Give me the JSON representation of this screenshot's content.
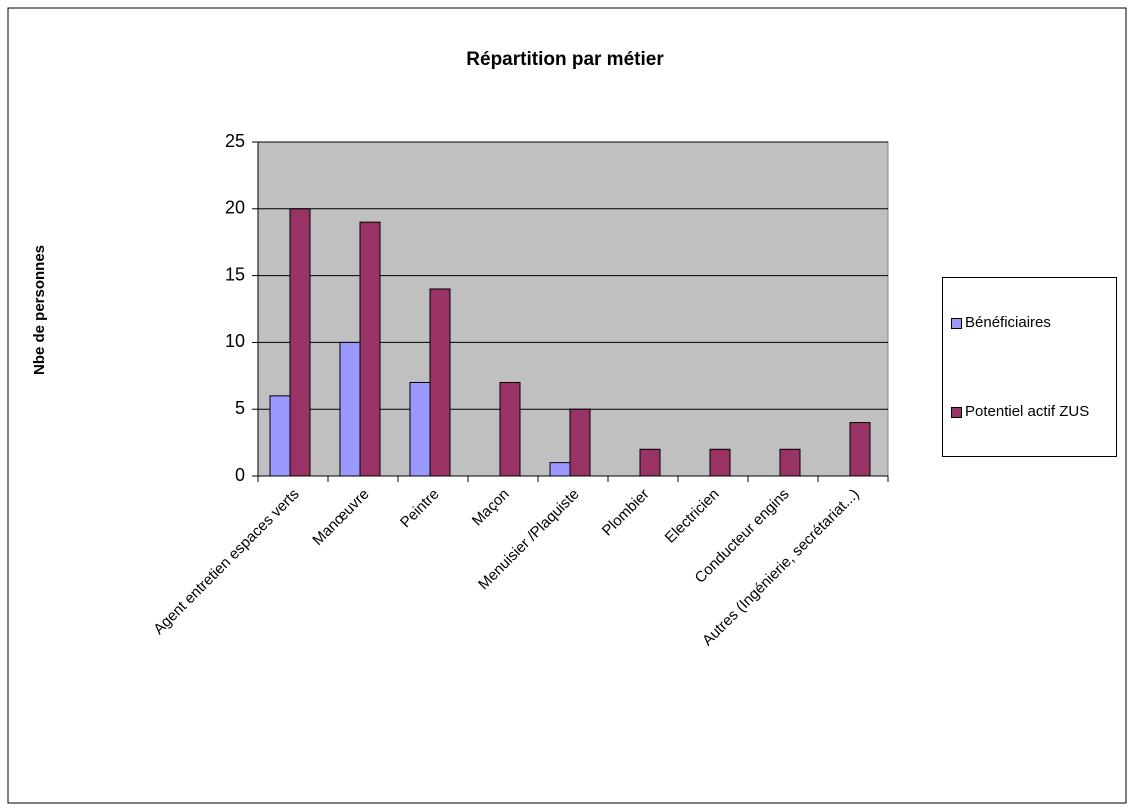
{
  "chart_data": {
    "type": "bar",
    "title": "Répartition par métier",
    "y_label": "Nbe de personnes",
    "categories": [
      "Agent entretien espaces verts",
      "Manœuvre",
      "Peintre",
      "Maçon",
      "Menuisier /Plaquiste",
      "Plombier",
      "Electricien",
      "Conducteur engins",
      "Autres (Ingénierie, secrétariat...)"
    ],
    "series": [
      {
        "name": "Bénéficiaires",
        "color": "#9999ff",
        "values": [
          6,
          10,
          7,
          0,
          1,
          0,
          0,
          0,
          0
        ]
      },
      {
        "name": "Potentiel actif ZUS",
        "color": "#993366",
        "values": [
          20,
          19,
          14,
          7,
          5,
          2,
          2,
          2,
          4
        ]
      }
    ],
    "ylim": [
      0,
      25
    ],
    "yticks": [
      0,
      5,
      10,
      15,
      20,
      25
    ],
    "grid": true,
    "legend": "right"
  }
}
